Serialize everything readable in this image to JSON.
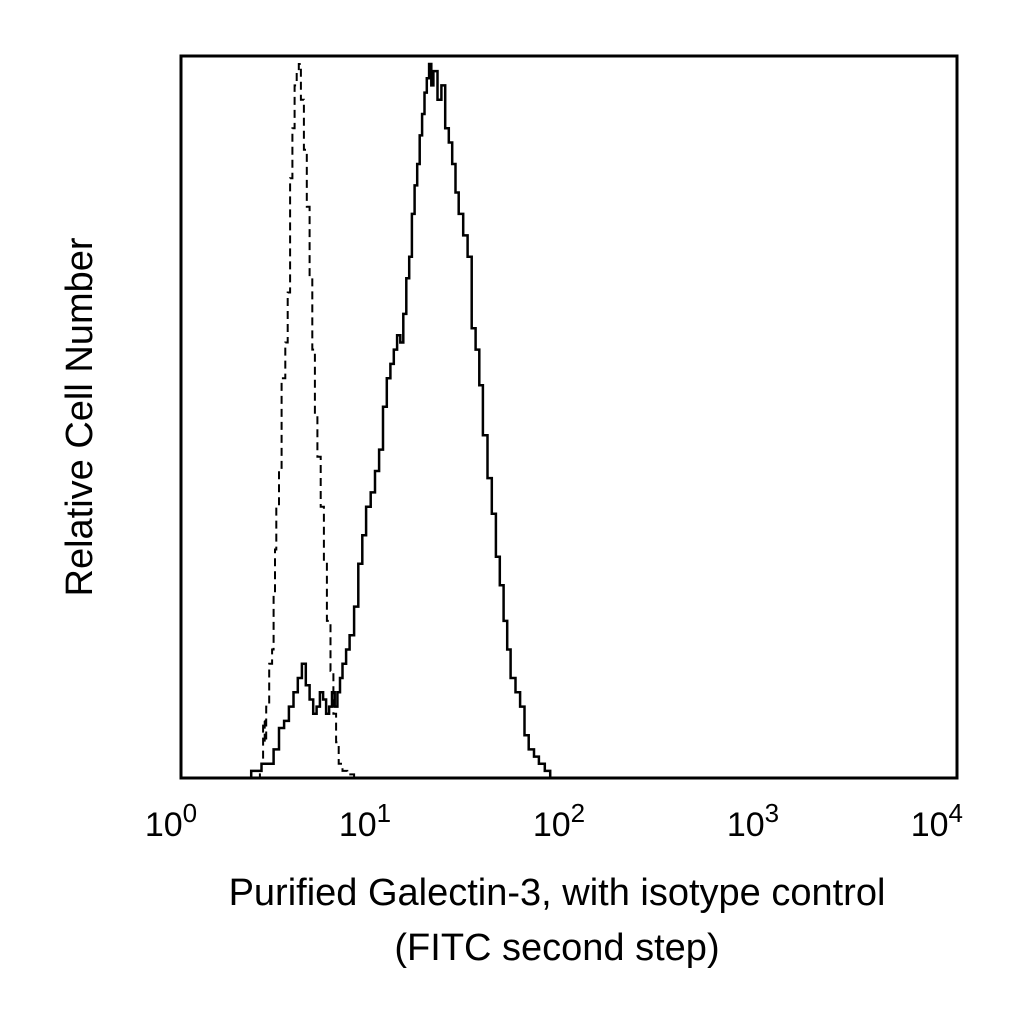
{
  "chart_data": {
    "type": "line",
    "xlabel_lines": [
      "Purified Galectin-3, with isotype control",
      "(FITC second step)"
    ],
    "ylabel": "Relative Cell Number",
    "x_scale": "log",
    "xlim": [
      1,
      10000
    ],
    "ylim": [
      0,
      100
    ],
    "x_ticks": [
      {
        "value": 1,
        "base": "10",
        "exp": "0"
      },
      {
        "value": 10,
        "base": "10",
        "exp": "1"
      },
      {
        "value": 100,
        "base": "10",
        "exp": "2"
      },
      {
        "value": 1000,
        "base": "10",
        "exp": "3"
      },
      {
        "value": 10000,
        "base": "10",
        "exp": "4"
      }
    ],
    "grid": false,
    "colors": {
      "line": "#000000",
      "frame": "#000000",
      "background": "#ffffff"
    },
    "series": [
      {
        "style": "dashed",
        "points": [
          [
            2.45,
            0
          ],
          [
            2.55,
            1
          ],
          [
            2.6,
            2
          ],
          [
            2.65,
            8
          ],
          [
            2.7,
            5
          ],
          [
            2.75,
            10
          ],
          [
            2.85,
            16
          ],
          [
            2.95,
            18
          ],
          [
            3.0,
            26
          ],
          [
            3.05,
            32
          ],
          [
            3.1,
            38
          ],
          [
            3.2,
            43
          ],
          [
            3.3,
            56
          ],
          [
            3.45,
            61
          ],
          [
            3.55,
            68
          ],
          [
            3.65,
            84
          ],
          [
            3.75,
            91
          ],
          [
            3.85,
            97
          ],
          [
            3.95,
            99
          ],
          [
            4.05,
            100
          ],
          [
            4.15,
            95
          ],
          [
            4.3,
            88
          ],
          [
            4.45,
            80
          ],
          [
            4.6,
            70
          ],
          [
            4.75,
            60
          ],
          [
            4.9,
            51
          ],
          [
            5.05,
            45
          ],
          [
            5.25,
            38
          ],
          [
            5.45,
            30
          ],
          [
            5.65,
            22
          ],
          [
            5.9,
            15
          ],
          [
            6.1,
            9
          ],
          [
            6.3,
            5
          ],
          [
            6.5,
            2
          ],
          [
            6.8,
            1
          ],
          [
            7.2,
            0.5
          ],
          [
            7.8,
            0
          ]
        ]
      },
      {
        "style": "solid",
        "points": [
          [
            2.0,
            0
          ],
          [
            2.3,
            1
          ],
          [
            2.6,
            2
          ],
          [
            2.8,
            2
          ],
          [
            3.0,
            4
          ],
          [
            3.2,
            7
          ],
          [
            3.4,
            8
          ],
          [
            3.6,
            10
          ],
          [
            3.8,
            12
          ],
          [
            4.0,
            14
          ],
          [
            4.2,
            16
          ],
          [
            4.4,
            13
          ],
          [
            4.6,
            11
          ],
          [
            4.8,
            9
          ],
          [
            5.0,
            10
          ],
          [
            5.2,
            12
          ],
          [
            5.4,
            11
          ],
          [
            5.6,
            9
          ],
          [
            5.8,
            10
          ],
          [
            6.0,
            12
          ],
          [
            6.2,
            10
          ],
          [
            6.4,
            12
          ],
          [
            6.6,
            14
          ],
          [
            6.8,
            16
          ],
          [
            7.1,
            18
          ],
          [
            7.4,
            20
          ],
          [
            7.8,
            24
          ],
          [
            8.2,
            30
          ],
          [
            8.6,
            34
          ],
          [
            9.0,
            38
          ],
          [
            9.5,
            40
          ],
          [
            10.0,
            43
          ],
          [
            10.5,
            46
          ],
          [
            11.0,
            52
          ],
          [
            11.5,
            56
          ],
          [
            12.0,
            58
          ],
          [
            12.5,
            60
          ],
          [
            13.0,
            62
          ],
          [
            13.5,
            61
          ],
          [
            14.0,
            65
          ],
          [
            14.5,
            70
          ],
          [
            15.0,
            73
          ],
          [
            15.5,
            79
          ],
          [
            16.0,
            83
          ],
          [
            16.5,
            86
          ],
          [
            17.0,
            90
          ],
          [
            17.5,
            93
          ],
          [
            18.0,
            96
          ],
          [
            18.5,
            98
          ],
          [
            19.0,
            100
          ],
          [
            19.5,
            97
          ],
          [
            20.0,
            99
          ],
          [
            21.0,
            95
          ],
          [
            22.0,
            97
          ],
          [
            23.0,
            91
          ],
          [
            24.0,
            89
          ],
          [
            25.0,
            86
          ],
          [
            26.0,
            82
          ],
          [
            27.0,
            79
          ],
          [
            28.5,
            76
          ],
          [
            30.0,
            73
          ],
          [
            31.5,
            63
          ],
          [
            33.0,
            60
          ],
          [
            34.5,
            55
          ],
          [
            36.0,
            48
          ],
          [
            38.0,
            42
          ],
          [
            40.0,
            37
          ],
          [
            42.0,
            31
          ],
          [
            44.0,
            27
          ],
          [
            46.0,
            22
          ],
          [
            48.0,
            18
          ],
          [
            50.0,
            14
          ],
          [
            53.0,
            12
          ],
          [
            56.0,
            10
          ],
          [
            59.0,
            6
          ],
          [
            62.0,
            4
          ],
          [
            66.0,
            3
          ],
          [
            70.0,
            2
          ],
          [
            75.0,
            1
          ],
          [
            80.0,
            0
          ]
        ]
      }
    ]
  }
}
